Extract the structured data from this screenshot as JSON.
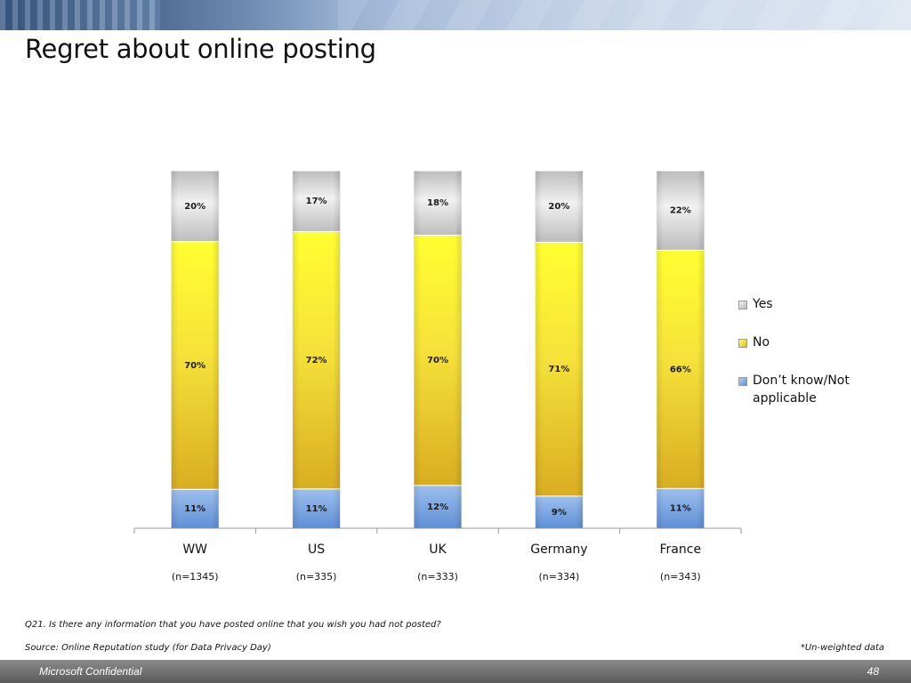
{
  "slide": {
    "title": "Regret about online posting",
    "question": "Q21. Is there any information that you have posted online that you wish you had not posted?",
    "source": "Source: Online Reputation study (for Data Privacy Day)",
    "note": "*Un-weighted data",
    "footer_left": "Microsoft Confidential",
    "page_number": "48"
  },
  "chart_data": {
    "type": "bar",
    "stacked": true,
    "percent_stacked": true,
    "categories": [
      "WW",
      "US",
      "UK",
      "Germany",
      "France"
    ],
    "sample_sizes": [
      "(n=1345)",
      "(n=335)",
      "(n=333)",
      "(n=334)",
      "(n=343)"
    ],
    "series": [
      {
        "name": "Don’t know/Not applicable",
        "values": [
          11,
          11,
          12,
          9,
          11
        ],
        "labels": [
          "11%",
          "11%",
          "12%",
          "9%",
          "11%"
        ],
        "color": "#7fa6dc"
      },
      {
        "name": "No",
        "values": [
          70,
          72,
          70,
          71,
          66
        ],
        "labels": [
          "70%",
          "72%",
          "70%",
          "71%",
          "66%"
        ],
        "color": "#f2d42c"
      },
      {
        "name": "Yes",
        "values": [
          20,
          17,
          18,
          20,
          22
        ],
        "labels": [
          "20%",
          "17%",
          "18%",
          "20%",
          "22%"
        ],
        "color": "#cfcfcf"
      }
    ],
    "legend": {
      "position": "right",
      "order": [
        "Yes",
        "No",
        "Don’t know/Not applicable"
      ],
      "line1": [
        "Yes",
        "No",
        "Don’t know/Not"
      ],
      "line2": [
        "",
        "",
        "applicable"
      ]
    },
    "ylim": [
      0,
      100
    ],
    "grid": false
  }
}
